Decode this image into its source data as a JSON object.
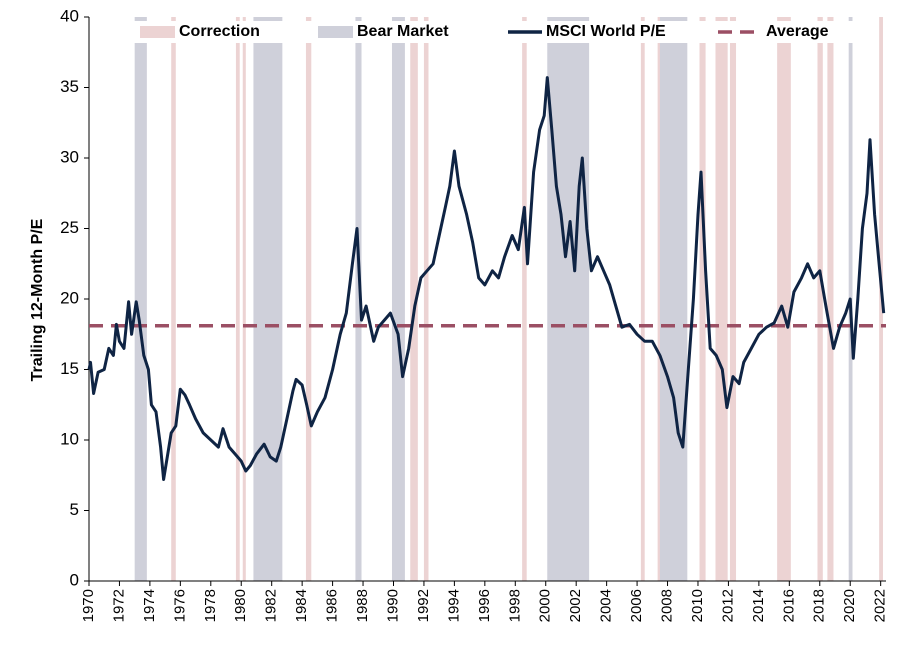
{
  "chart_data": {
    "type": "line",
    "y_label": "Trailing 12-Month P/E",
    "xlim": [
      1970,
      2022.35
    ],
    "ylim": [
      0,
      40
    ],
    "xticks": [
      1970,
      1972,
      1974,
      1976,
      1978,
      1980,
      1982,
      1984,
      1986,
      1988,
      1990,
      1992,
      1994,
      1996,
      1998,
      2000,
      2002,
      2004,
      2006,
      2008,
      2010,
      2012,
      2014,
      2016,
      2018,
      2020,
      2022
    ],
    "yticks": [
      0,
      5,
      10,
      15,
      20,
      25,
      30,
      35,
      40
    ],
    "bands": [
      {
        "name": "Correction",
        "color": "#ecd3d3",
        "ranges": [
          [
            1975.4,
            1975.7
          ],
          [
            1979.65,
            1979.9
          ],
          [
            1980.1,
            1980.3
          ],
          [
            1984.25,
            1984.6
          ],
          [
            1991.1,
            1991.6
          ],
          [
            1992.0,
            1992.3
          ],
          [
            1998.45,
            1998.75
          ],
          [
            2006.25,
            2006.5
          ],
          [
            2007.35,
            2007.55
          ],
          [
            2010.1,
            2010.5
          ],
          [
            2011.15,
            2011.95
          ],
          [
            2012.1,
            2012.5
          ],
          [
            2015.2,
            2016.1
          ],
          [
            2017.85,
            2018.2
          ],
          [
            2018.5,
            2018.9
          ],
          [
            2021.9,
            2022.15
          ]
        ]
      },
      {
        "name": "Bear Market",
        "color": "#cfd0da",
        "ranges": [
          [
            1973.0,
            1973.8
          ],
          [
            1980.8,
            1982.7
          ],
          [
            1987.5,
            1987.9
          ],
          [
            1989.9,
            1990.75
          ],
          [
            2000.1,
            2002.85
          ],
          [
            2007.5,
            2009.3
          ],
          [
            2019.9,
            2020.15
          ]
        ]
      }
    ],
    "series": [
      {
        "name": "MSCI World P/E",
        "color": "#0f2444",
        "x": [
          1970.0,
          1970.1,
          1970.3,
          1970.6,
          1971.0,
          1971.3,
          1971.6,
          1971.8,
          1972.0,
          1972.3,
          1972.6,
          1972.8,
          1973.1,
          1973.3,
          1973.6,
          1973.9,
          1974.1,
          1974.4,
          1974.7,
          1974.9,
          1975.1,
          1975.4,
          1975.7,
          1976.0,
          1976.3,
          1976.6,
          1977.0,
          1977.5,
          1978.0,
          1978.5,
          1978.8,
          1979.2,
          1979.6,
          1980.0,
          1980.3,
          1980.6,
          1981.0,
          1981.5,
          1981.9,
          1982.3,
          1982.6,
          1983.0,
          1983.4,
          1983.6,
          1984.0,
          1984.3,
          1984.6,
          1985.0,
          1985.5,
          1986.0,
          1986.5,
          1986.9,
          1987.3,
          1987.6,
          1987.9,
          1988.2,
          1988.7,
          1989.0,
          1989.4,
          1989.8,
          1990.3,
          1990.6,
          1991.0,
          1991.4,
          1991.8,
          1992.2,
          1992.6,
          1993.0,
          1993.4,
          1993.7,
          1994.0,
          1994.3,
          1994.8,
          1995.2,
          1995.6,
          1996.0,
          1996.5,
          1996.9,
          1997.3,
          1997.8,
          1998.2,
          1998.6,
          1998.8,
          1999.2,
          1999.6,
          1999.9,
          2000.1,
          2000.4,
          2000.7,
          2001.0,
          2001.3,
          2001.6,
          2001.9,
          2002.2,
          2002.4,
          2002.7,
          2003.0,
          2003.4,
          2003.8,
          2004.2,
          2004.6,
          2005.0,
          2005.5,
          2006.0,
          2006.5,
          2007.0,
          2007.5,
          2008.0,
          2008.4,
          2008.7,
          2009.0,
          2009.3,
          2009.7,
          2010.0,
          2010.2,
          2010.5,
          2010.8,
          2011.2,
          2011.6,
          2011.9,
          2012.3,
          2012.7,
          2013.0,
          2013.5,
          2014.0,
          2014.5,
          2015.0,
          2015.5,
          2015.9,
          2016.3,
          2016.8,
          2017.2,
          2017.6,
          2018.0,
          2018.4,
          2018.9,
          2019.3,
          2019.7,
          2020.0,
          2020.2,
          2020.5,
          2020.8,
          2021.1,
          2021.3,
          2021.6,
          2021.9,
          2022.2
        ],
        "values": [
          15.0,
          15.5,
          13.3,
          14.8,
          15.0,
          16.5,
          16.0,
          18.2,
          17.0,
          16.5,
          19.8,
          17.5,
          19.8,
          18.5,
          16.0,
          15.0,
          12.5,
          12.0,
          9.5,
          7.2,
          8.5,
          10.5,
          11.0,
          13.6,
          13.2,
          12.5,
          11.5,
          10.5,
          10.0,
          9.5,
          10.8,
          9.5,
          9.0,
          8.5,
          7.8,
          8.2,
          9.0,
          9.7,
          8.8,
          8.5,
          9.5,
          11.5,
          13.5,
          14.3,
          13.9,
          12.5,
          11.0,
          12.0,
          13.0,
          15.0,
          17.5,
          19.0,
          22.5,
          25.0,
          18.5,
          19.5,
          17.0,
          18.0,
          18.5,
          19.0,
          17.5,
          14.5,
          16.5,
          19.5,
          21.5,
          22.0,
          22.5,
          24.5,
          26.5,
          28.0,
          30.5,
          28.0,
          26.0,
          24.0,
          21.5,
          21.0,
          22.0,
          21.5,
          23.0,
          24.5,
          23.5,
          26.5,
          22.5,
          29.0,
          32.0,
          33.0,
          35.7,
          32.0,
          28.0,
          26.0,
          23.0,
          25.5,
          22.0,
          28.0,
          30.0,
          25.0,
          22.0,
          23.0,
          22.0,
          21.0,
          19.5,
          18.0,
          18.2,
          17.5,
          17.0,
          17.0,
          16.0,
          14.5,
          13.0,
          10.5,
          9.5,
          14.0,
          20.0,
          26.0,
          29.0,
          22.0,
          16.5,
          16.0,
          15.0,
          12.3,
          14.5,
          14.0,
          15.5,
          16.5,
          17.5,
          18.0,
          18.3,
          19.5,
          18.0,
          20.5,
          21.5,
          22.5,
          21.5,
          22.0,
          19.5,
          16.5,
          18.0,
          19.0,
          20.0,
          15.8,
          20.0,
          25.0,
          27.5,
          31.3,
          26.0,
          22.5,
          19.0
        ]
      }
    ],
    "average": {
      "name": "Average",
      "value": 18.1,
      "color": "#9b4f64"
    }
  }
}
